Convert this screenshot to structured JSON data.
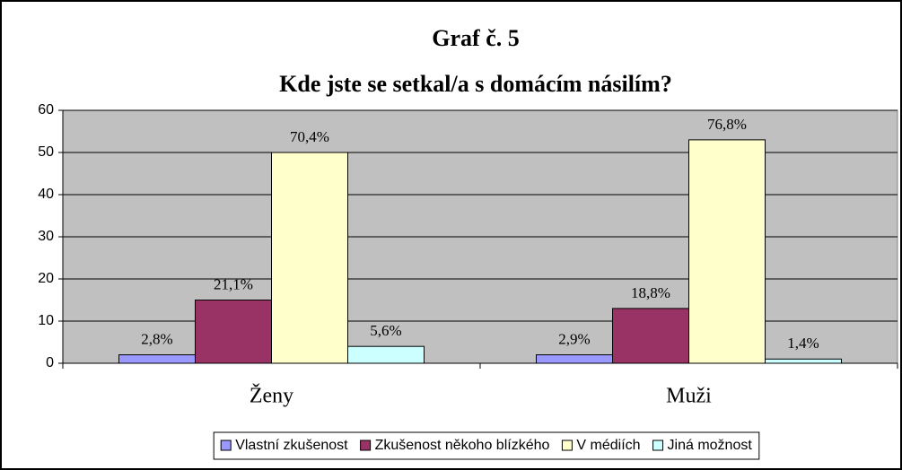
{
  "chart_data": {
    "type": "bar",
    "title": "Graf č. 5",
    "subtitle": "Kde jste se setkal/a s domácím násilím?",
    "categories": [
      "Ženy",
      "Muži"
    ],
    "series": [
      {
        "name": "Vlastní zkušenost",
        "color": "#9999ff",
        "values": [
          2,
          2
        ],
        "value_labels": [
          "2,8%",
          "2,9%"
        ]
      },
      {
        "name": "Zkušenost někoho blízkého",
        "color": "#993366",
        "values": [
          15,
          13
        ],
        "value_labels": [
          "21,1%",
          "18,8%"
        ]
      },
      {
        "name": "V médiích",
        "color": "#ffffcc",
        "values": [
          50,
          53
        ],
        "value_labels": [
          "70,4%",
          "76,8%"
        ]
      },
      {
        "name": "Jiná možnost",
        "color": "#ccffff",
        "values": [
          4,
          1
        ],
        "value_labels": [
          "5,6%",
          "1,4%"
        ]
      }
    ],
    "ylim": [
      0,
      60
    ],
    "yticks": [
      0,
      10,
      20,
      30,
      40,
      50,
      60
    ],
    "grid": true,
    "legend": "bottom",
    "plot_background": "#c0c0c0"
  }
}
